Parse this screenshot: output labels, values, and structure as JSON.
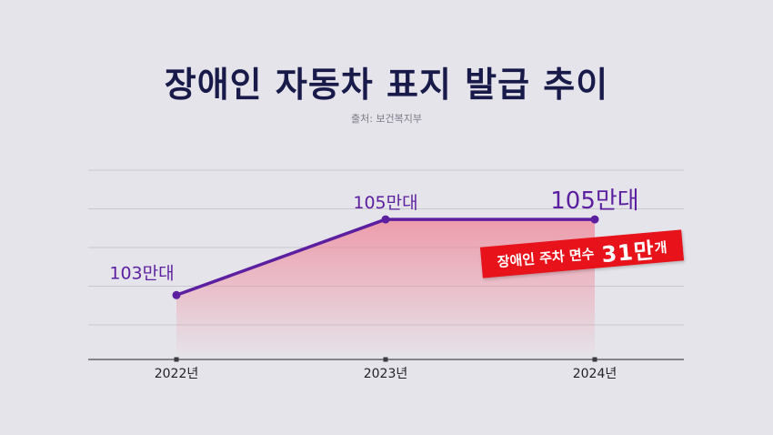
{
  "title": "장애인 자동차 표지 발급 추이",
  "source": "출처: 보건복지부",
  "colors": {
    "background": "#e5e4ea",
    "title": "#181a4a",
    "line": "#5b1fa0",
    "area_top": "#f08497",
    "badge": "#e8121b"
  },
  "chart_data": {
    "type": "area",
    "categories": [
      "2022년",
      "2023년",
      "2024년"
    ],
    "values": [
      103,
      105,
      105
    ],
    "unit": "만대",
    "data_labels": [
      "103만대",
      "105만대",
      "105만대"
    ],
    "xlabel": "",
    "ylabel": "",
    "ylim": [
      101.3,
      106.3
    ],
    "grid": true,
    "legend": "none"
  },
  "annotation": {
    "prefix": "장애인 주차 면수 ",
    "value": "31만",
    "suffix": "개"
  }
}
